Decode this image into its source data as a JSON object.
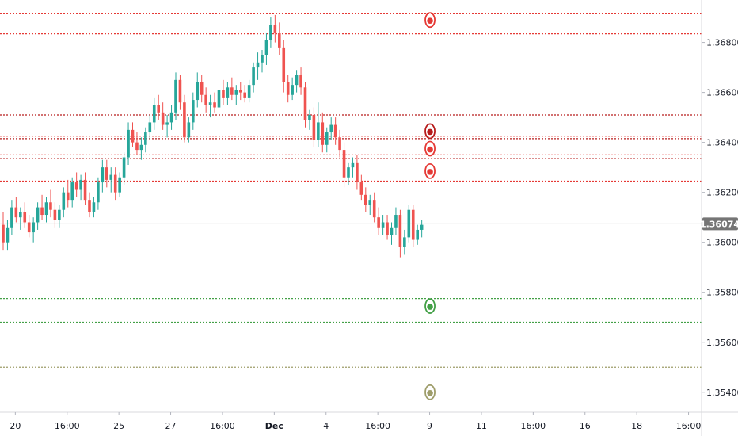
{
  "chart_data": {
    "type": "candlestick",
    "title": "",
    "xlabel": "",
    "ylabel": "",
    "ylim": [
      1.3532,
      1.3697
    ],
    "y_ticks": [
      "1.36800",
      "1.36600",
      "1.36400",
      "1.36200",
      "1.36000",
      "1.35800",
      "1.35600",
      "1.35400"
    ],
    "y_tick_values": [
      1.368,
      1.366,
      1.364,
      1.362,
      1.36,
      1.358,
      1.356,
      1.354
    ],
    "current_price": 1.36074,
    "current_price_label": "1.36074",
    "x_tick_labels": [
      "20",
      "16:00",
      "25",
      "27",
      "16:00",
      "Dec",
      "4",
      "16:00",
      "9",
      "11",
      "16:00",
      "16",
      "18",
      "16:00"
    ],
    "x_tick_index": [
      3,
      15,
      27,
      39,
      51,
      63,
      75,
      87,
      99,
      111,
      123,
      135,
      147,
      159
    ],
    "colors": {
      "up": "#26a69a",
      "down": "#ef5350",
      "resistance": "#e53935",
      "resistance_strong": "#b71c1c",
      "support": "#43a047",
      "target": "#9e9d6a",
      "current_line": "#c8c8c8",
      "price_tag": "#757575",
      "axis_text": "#131722"
    },
    "levels": [
      {
        "price": 1.36915,
        "color": "#e53935"
      },
      {
        "price": 1.36835,
        "color": "#e53935"
      },
      {
        "price": 1.3651,
        "color": "#b71c1c"
      },
      {
        "price": 1.36425,
        "color": "#e53935"
      },
      {
        "price": 1.36415,
        "color": "#b71c1c"
      },
      {
        "price": 1.3635,
        "color": "#e53935"
      },
      {
        "price": 1.36335,
        "color": "#b71c1c"
      },
      {
        "price": 1.36245,
        "color": "#e53935"
      },
      {
        "price": 1.35775,
        "color": "#43a047"
      },
      {
        "price": 1.3568,
        "color": "#43a047"
      },
      {
        "price": 1.355,
        "color": "#9e9d6a"
      }
    ],
    "markers": [
      {
        "index": 99,
        "price": 1.3689,
        "color": "#e53935",
        "icon": "red-target-icon"
      },
      {
        "index": 99,
        "price": 1.36445,
        "color": "#b71c1c",
        "icon": "darkred-target-icon"
      },
      {
        "index": 99,
        "price": 1.36375,
        "color": "#e53935",
        "icon": "red-target-icon"
      },
      {
        "index": 99,
        "price": 1.36285,
        "color": "#e53935",
        "icon": "red-target-icon"
      },
      {
        "index": 99,
        "price": 1.35745,
        "color": "#43a047",
        "icon": "green-target-icon"
      },
      {
        "index": 99,
        "price": 1.354,
        "color": "#9e9d6a",
        "icon": "olive-target-icon"
      }
    ],
    "candles": [
      [
        1.3607,
        1.3612,
        1.3597,
        1.36
      ],
      [
        1.36,
        1.3609,
        1.3597,
        1.3606
      ],
      [
        1.3606,
        1.3617,
        1.3603,
        1.3614
      ],
      [
        1.3614,
        1.3618,
        1.3608,
        1.361
      ],
      [
        1.361,
        1.3614,
        1.3605,
        1.3612
      ],
      [
        1.3612,
        1.3616,
        1.3606,
        1.3608
      ],
      [
        1.3608,
        1.3611,
        1.3602,
        1.3604
      ],
      [
        1.3604,
        1.361,
        1.36,
        1.3608
      ],
      [
        1.3608,
        1.3616,
        1.3605,
        1.3614
      ],
      [
        1.3614,
        1.3619,
        1.3609,
        1.3611
      ],
      [
        1.3611,
        1.3618,
        1.3608,
        1.3616
      ],
      [
        1.3616,
        1.3621,
        1.361,
        1.3613
      ],
      [
        1.3613,
        1.3616,
        1.3606,
        1.3609
      ],
      [
        1.3609,
        1.3615,
        1.3606,
        1.3613
      ],
      [
        1.3613,
        1.3622,
        1.361,
        1.362
      ],
      [
        1.362,
        1.3625,
        1.3614,
        1.3617
      ],
      [
        1.3617,
        1.3626,
        1.3614,
        1.3624
      ],
      [
        1.3624,
        1.3628,
        1.3618,
        1.3621
      ],
      [
        1.3621,
        1.3627,
        1.3617,
        1.3625
      ],
      [
        1.3625,
        1.3628,
        1.3615,
        1.3617
      ],
      [
        1.3617,
        1.362,
        1.361,
        1.3612
      ],
      [
        1.3612,
        1.3618,
        1.361,
        1.3616
      ],
      [
        1.3616,
        1.3626,
        1.3613,
        1.3624
      ],
      [
        1.3624,
        1.3633,
        1.362,
        1.363
      ],
      [
        1.363,
        1.3633,
        1.3622,
        1.3625
      ],
      [
        1.3625,
        1.363,
        1.362,
        1.3627
      ],
      [
        1.3627,
        1.363,
        1.3617,
        1.362
      ],
      [
        1.362,
        1.3628,
        1.3618,
        1.3626
      ],
      [
        1.3626,
        1.3636,
        1.3623,
        1.3634
      ],
      [
        1.3634,
        1.3648,
        1.3631,
        1.3645
      ],
      [
        1.3645,
        1.3648,
        1.3638,
        1.364
      ],
      [
        1.364,
        1.3644,
        1.3635,
        1.3637
      ],
      [
        1.3637,
        1.3642,
        1.3633,
        1.3639
      ],
      [
        1.3639,
        1.3646,
        1.3636,
        1.3644
      ],
      [
        1.3644,
        1.3651,
        1.3641,
        1.3648
      ],
      [
        1.3648,
        1.3658,
        1.3645,
        1.3655
      ],
      [
        1.3655,
        1.3659,
        1.3649,
        1.3652
      ],
      [
        1.3652,
        1.3656,
        1.3645,
        1.3647
      ],
      [
        1.3647,
        1.3651,
        1.3642,
        1.3648
      ],
      [
        1.3648,
        1.3655,
        1.3645,
        1.3652
      ],
      [
        1.3652,
        1.3668,
        1.3649,
        1.3665
      ],
      [
        1.3665,
        1.3667,
        1.3653,
        1.3656
      ],
      [
        1.3656,
        1.3659,
        1.364,
        1.3642
      ],
      [
        1.3642,
        1.365,
        1.364,
        1.3648
      ],
      [
        1.3648,
        1.366,
        1.3645,
        1.3657
      ],
      [
        1.3657,
        1.3668,
        1.3654,
        1.3664
      ],
      [
        1.3664,
        1.3667,
        1.3656,
        1.3659
      ],
      [
        1.3659,
        1.3662,
        1.3652,
        1.3655
      ],
      [
        1.3655,
        1.3659,
        1.365,
        1.3656
      ],
      [
        1.3656,
        1.366,
        1.3652,
        1.3654
      ],
      [
        1.3654,
        1.3663,
        1.3652,
        1.3661
      ],
      [
        1.3661,
        1.3665,
        1.3655,
        1.3658
      ],
      [
        1.3658,
        1.3664,
        1.3655,
        1.3662
      ],
      [
        1.3662,
        1.3666,
        1.3657,
        1.3659
      ],
      [
        1.3659,
        1.3663,
        1.3655,
        1.3661
      ],
      [
        1.3661,
        1.3664,
        1.3657,
        1.366
      ],
      [
        1.366,
        1.3663,
        1.3656,
        1.3658
      ],
      [
        1.3658,
        1.3665,
        1.3656,
        1.3663
      ],
      [
        1.3663,
        1.3672,
        1.366,
        1.367
      ],
      [
        1.367,
        1.3676,
        1.3665,
        1.3672
      ],
      [
        1.3672,
        1.3677,
        1.3668,
        1.3675
      ],
      [
        1.3675,
        1.3684,
        1.3671,
        1.3681
      ],
      [
        1.3681,
        1.369,
        1.3678,
        1.3687
      ],
      [
        1.3687,
        1.3691,
        1.368,
        1.3684
      ],
      [
        1.3684,
        1.3688,
        1.3675,
        1.3678
      ],
      [
        1.3678,
        1.3681,
        1.366,
        1.3664
      ],
      [
        1.3664,
        1.3667,
        1.3656,
        1.3659
      ],
      [
        1.3659,
        1.3666,
        1.3657,
        1.3663
      ],
      [
        1.3663,
        1.3669,
        1.366,
        1.3667
      ],
      [
        1.3667,
        1.367,
        1.3659,
        1.3662
      ],
      [
        1.3662,
        1.3664,
        1.3646,
        1.3649
      ],
      [
        1.3649,
        1.3653,
        1.3645,
        1.3651
      ],
      [
        1.3651,
        1.3654,
        1.3638,
        1.3641
      ],
      [
        1.3641,
        1.3656,
        1.3638,
        1.3648
      ],
      [
        1.3648,
        1.3652,
        1.3636,
        1.3639
      ],
      [
        1.3639,
        1.3646,
        1.3636,
        1.3644
      ],
      [
        1.3644,
        1.365,
        1.3641,
        1.3647
      ],
      [
        1.3647,
        1.365,
        1.3639,
        1.3642
      ],
      [
        1.3642,
        1.3645,
        1.3634,
        1.3637
      ],
      [
        1.3637,
        1.364,
        1.3622,
        1.3626
      ],
      [
        1.3626,
        1.3632,
        1.3623,
        1.363
      ],
      [
        1.363,
        1.3634,
        1.3626,
        1.3632
      ],
      [
        1.3632,
        1.3635,
        1.3621,
        1.3624
      ],
      [
        1.3624,
        1.3627,
        1.3617,
        1.3619
      ],
      [
        1.3619,
        1.3622,
        1.3612,
        1.3615
      ],
      [
        1.3615,
        1.3619,
        1.3611,
        1.3617
      ],
      [
        1.3617,
        1.362,
        1.3608,
        1.361
      ],
      [
        1.361,
        1.3614,
        1.3603,
        1.3606
      ],
      [
        1.3606,
        1.3611,
        1.3603,
        1.3608
      ],
      [
        1.3608,
        1.3611,
        1.3601,
        1.3603
      ],
      [
        1.3603,
        1.3608,
        1.3599,
        1.3606
      ],
      [
        1.3606,
        1.3614,
        1.3603,
        1.3611
      ],
      [
        1.3611,
        1.3613,
        1.3594,
        1.3598
      ],
      [
        1.3598,
        1.3605,
        1.3595,
        1.3602
      ],
      [
        1.3602,
        1.3615,
        1.36,
        1.3613
      ],
      [
        1.3613,
        1.3615,
        1.3598,
        1.3601
      ],
      [
        1.3601,
        1.3607,
        1.3599,
        1.3605
      ],
      [
        1.3605,
        1.3609,
        1.3602,
        1.3607
      ]
    ]
  }
}
